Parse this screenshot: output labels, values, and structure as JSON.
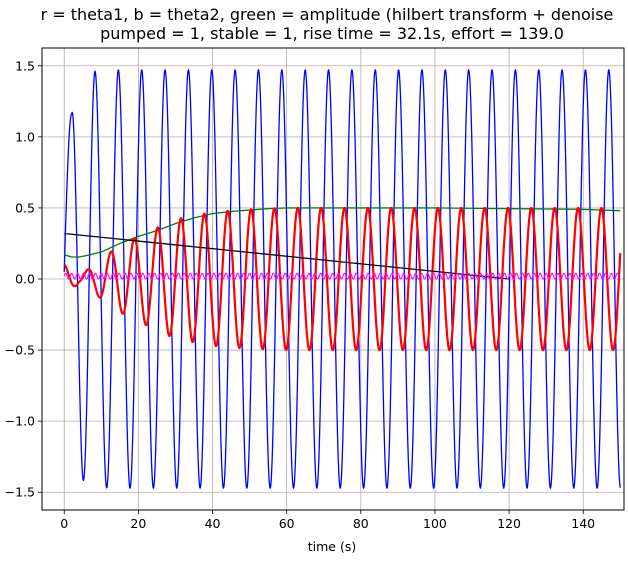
{
  "chart_data": {
    "type": "line",
    "title_lines": [
      "r = theta1, b = theta2, green = amplitude (hilbert transform + denoise",
      "pumped = 1, stable = 1, rise time = 32.1s, effort = 139.0"
    ],
    "xlabel": "time (s)",
    "ylabel": "",
    "xlim": [
      -6,
      151
    ],
    "ylim": [
      -1.625,
      1.625
    ],
    "xticks": [
      0,
      20,
      40,
      60,
      80,
      100,
      120,
      140
    ],
    "yticks": [
      -1.5,
      -1.0,
      -0.5,
      0.0,
      0.5,
      1.0,
      1.5
    ],
    "xtick_labels": [
      "0",
      "20",
      "40",
      "60",
      "80",
      "100",
      "120",
      "140"
    ],
    "ytick_labels": [
      "−1.5",
      "−1.0",
      "−0.5",
      "0.0",
      "0.5",
      "1.0",
      "1.5"
    ],
    "grid": true,
    "legend": "none",
    "series": [
      {
        "key": "theta2",
        "color": "#0000ff",
        "initial_value": 0.05,
        "first_peak": 1.16,
        "first_peak_t": 2.0,
        "steady_amplitude": 1.47,
        "period": 6.3,
        "t_end": 150
      },
      {
        "key": "theta1",
        "color": "#ff0000",
        "initial_value": 0.1,
        "steady_amplitude": 0.5,
        "period": 6.3,
        "t_end": 150,
        "amplitude_points": [
          [
            0,
            0.1
          ],
          [
            2,
            0.07
          ],
          [
            4,
            0.03
          ],
          [
            6,
            0.06
          ],
          [
            8,
            0.1
          ],
          [
            10,
            0.14
          ],
          [
            14,
            0.22
          ],
          [
            20,
            0.3
          ],
          [
            30,
            0.42
          ],
          [
            40,
            0.47
          ],
          [
            50,
            0.49
          ],
          [
            60,
            0.5
          ],
          [
            150,
            0.5
          ]
        ]
      },
      {
        "key": "amplitude",
        "color": "#008000",
        "points": [
          [
            0,
            0.17
          ],
          [
            2,
            0.155
          ],
          [
            4,
            0.155
          ],
          [
            6,
            0.165
          ],
          [
            10,
            0.19
          ],
          [
            15,
            0.25
          ],
          [
            20,
            0.3
          ],
          [
            25,
            0.34
          ],
          [
            30,
            0.39
          ],
          [
            35,
            0.43
          ],
          [
            40,
            0.46
          ],
          [
            45,
            0.475
          ],
          [
            50,
            0.485
          ],
          [
            55,
            0.495
          ],
          [
            60,
            0.5
          ],
          [
            70,
            0.5
          ],
          [
            100,
            0.5
          ],
          [
            120,
            0.495
          ],
          [
            140,
            0.49
          ],
          [
            150,
            0.48
          ]
        ]
      },
      {
        "key": "trend",
        "color": "#000000",
        "points": [
          [
            0,
            0.32
          ],
          [
            120,
            0.0
          ]
        ]
      },
      {
        "key": "control",
        "color": "#ff00ff",
        "level": 0.02,
        "amplitude": 0.02,
        "period": 1.6,
        "t_end": 150
      }
    ]
  }
}
